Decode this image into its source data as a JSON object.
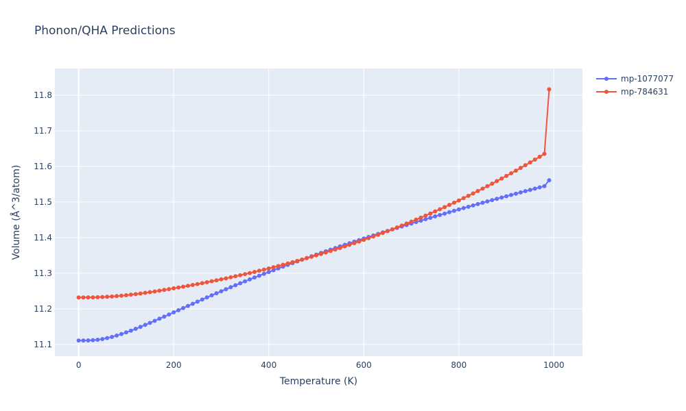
{
  "chart_data": {
    "type": "line",
    "title": "Phonon/QHA Predictions",
    "xlabel": "Temperature (K)",
    "ylabel": "Volume (Å^3/atom)",
    "xlim": [
      -50,
      1060
    ],
    "ylim": [
      11.067,
      11.875
    ],
    "xticks": [
      0,
      200,
      400,
      600,
      800,
      1000
    ],
    "yticks": [
      11.1,
      11.2,
      11.3,
      11.4,
      11.5,
      11.6,
      11.7,
      11.8
    ],
    "grid": true,
    "legend_position": "top-right",
    "series": [
      {
        "name": "mp-1077077",
        "color": "#636efa",
        "x": [
          0,
          10,
          20,
          30,
          40,
          50,
          60,
          70,
          80,
          90,
          100,
          110,
          120,
          130,
          140,
          150,
          160,
          170,
          180,
          190,
          200,
          210,
          220,
          230,
          240,
          250,
          260,
          270,
          280,
          290,
          300,
          310,
          320,
          330,
          340,
          350,
          360,
          370,
          380,
          390,
          400,
          410,
          420,
          430,
          440,
          450,
          460,
          470,
          480,
          490,
          500,
          510,
          520,
          530,
          540,
          550,
          560,
          570,
          580,
          590,
          600,
          610,
          620,
          630,
          640,
          650,
          660,
          670,
          680,
          690,
          700,
          710,
          720,
          730,
          740,
          750,
          760,
          770,
          780,
          790,
          800,
          810,
          820,
          830,
          840,
          850,
          860,
          870,
          880,
          890,
          900,
          910,
          920,
          930,
          940,
          950,
          960,
          970,
          980,
          990
        ],
        "y": [
          11.111,
          11.111,
          11.1112,
          11.1119,
          11.1132,
          11.1152,
          11.1179,
          11.1212,
          11.125,
          11.1292,
          11.1338,
          11.1387,
          11.1439,
          11.1493,
          11.1549,
          11.1606,
          11.1664,
          11.1723,
          11.1782,
          11.1842,
          11.1902,
          11.1962,
          11.2022,
          11.2082,
          11.2142,
          11.2202,
          11.2262,
          11.2321,
          11.2379,
          11.2437,
          11.2494,
          11.2551,
          11.2607,
          11.2663,
          11.2718,
          11.2772,
          11.2826,
          11.2879,
          11.2931,
          11.2983,
          11.3034,
          11.3085,
          11.3136,
          11.3186,
          11.3235,
          11.3284,
          11.3333,
          11.3381,
          11.3429,
          11.3476,
          11.3523,
          11.357,
          11.3616,
          11.3662,
          11.3708,
          11.3753,
          11.3798,
          11.3843,
          11.3887,
          11.3931,
          11.3975,
          11.4018,
          11.4061,
          11.4104,
          11.4147,
          11.4189,
          11.4231,
          11.4273,
          11.4314,
          11.4355,
          11.4396,
          11.4437,
          11.4477,
          11.4517,
          11.4557,
          11.4597,
          11.4636,
          11.4675,
          11.4714,
          11.4753,
          11.4791,
          11.4829,
          11.4867,
          11.4905,
          11.4943,
          11.498,
          11.5017,
          11.5054,
          11.5091,
          11.5127,
          11.5163,
          11.5199,
          11.5235,
          11.5271,
          11.5306,
          11.5341,
          11.5376,
          11.5411,
          11.5446,
          11.5611
        ]
      },
      {
        "name": "mp-784631",
        "color": "#ef553b",
        "x": [
          0,
          10,
          20,
          30,
          40,
          50,
          60,
          70,
          80,
          90,
          100,
          110,
          120,
          130,
          140,
          150,
          160,
          170,
          180,
          190,
          200,
          210,
          220,
          230,
          240,
          250,
          260,
          270,
          280,
          290,
          300,
          310,
          320,
          330,
          340,
          350,
          360,
          370,
          380,
          390,
          400,
          410,
          420,
          430,
          440,
          450,
          460,
          470,
          480,
          490,
          500,
          510,
          520,
          530,
          540,
          550,
          560,
          570,
          580,
          590,
          600,
          610,
          620,
          630,
          640,
          650,
          660,
          670,
          680,
          690,
          700,
          710,
          720,
          730,
          740,
          750,
          760,
          770,
          780,
          790,
          800,
          810,
          820,
          830,
          840,
          850,
          860,
          870,
          880,
          890,
          900,
          910,
          920,
          930,
          940,
          950,
          960,
          970,
          980,
          990
        ],
        "y": [
          11.232,
          11.232,
          11.2321,
          11.2323,
          11.2326,
          11.2331,
          11.2338,
          11.2347,
          11.2357,
          11.2369,
          11.2383,
          11.2398,
          11.2414,
          11.2431,
          11.245,
          11.2469,
          11.2489,
          11.251,
          11.2531,
          11.2553,
          11.2576,
          11.2599,
          11.2623,
          11.2647,
          11.2671,
          11.2696,
          11.2721,
          11.2747,
          11.2774,
          11.2801,
          11.2829,
          11.2857,
          11.2886,
          11.2915,
          11.2945,
          11.2975,
          11.3006,
          11.3037,
          11.3069,
          11.3102,
          11.3135,
          11.3169,
          11.3203,
          11.3238,
          11.3274,
          11.331,
          11.3347,
          11.3385,
          11.3423,
          11.3462,
          11.3502,
          11.3542,
          11.3583,
          11.3625,
          11.3667,
          11.371,
          11.3754,
          11.3799,
          11.3844,
          11.389,
          11.3937,
          11.3985,
          11.4033,
          11.4082,
          11.4132,
          11.4183,
          11.4234,
          11.4287,
          11.434,
          11.4394,
          11.4449,
          11.4505,
          11.4561,
          11.4619,
          11.4677,
          11.4736,
          11.4796,
          11.4857,
          11.4919,
          11.4982,
          11.5045,
          11.511,
          11.5175,
          11.5242,
          11.5309,
          11.5377,
          11.5446,
          11.5516,
          11.5587,
          11.5659,
          11.5732,
          11.5806,
          11.5881,
          11.5957,
          11.6034,
          11.6112,
          11.6191,
          11.6271,
          11.6352,
          11.8165
        ]
      }
    ]
  }
}
